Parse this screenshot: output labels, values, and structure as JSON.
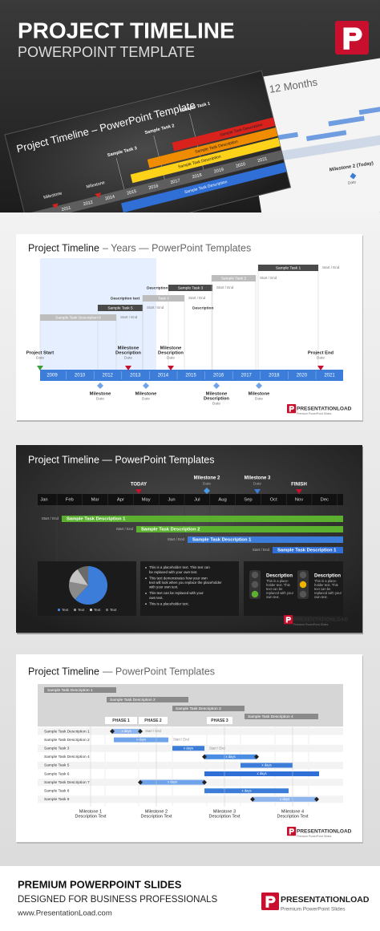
{
  "header": {
    "title": "PROJECT TIMELINE",
    "subtitle": "POWERPOINT TEMPLATE"
  },
  "preview_dark": {
    "title": "Project Timeline – PowerPoint Template",
    "tasks": [
      "Sample Task 1",
      "Sample Task 2",
      "Sample Task 3"
    ],
    "bar_label": "Sample Task Description",
    "milestone": "Milestone",
    "years": [
      "2011",
      "2012",
      "2014",
      "2015",
      "2016",
      "2017",
      "2018",
      "2019",
      "2020",
      "2021"
    ]
  },
  "preview_light": {
    "title": "e – 12 Months",
    "milestone": "Milestone 2 (Today)",
    "date": "Date"
  },
  "slide_years": {
    "title": "Project Timeline",
    "title_rest": "– Years — PowerPoint Templates",
    "years": [
      "2009",
      "2010",
      "2012",
      "2013",
      "2014",
      "2015",
      "2016",
      "2017",
      "2018",
      "2020",
      "2021"
    ],
    "tasks": [
      {
        "name": "Sample Task Description 6",
        "note": "Start / End"
      },
      {
        "name": "Sample Task 5",
        "note": "Start / End"
      },
      {
        "name": "Task 4",
        "note": "Start / End"
      },
      {
        "name": "Sample Task 3",
        "note": "Start / End"
      },
      {
        "name": "Sample Task 2",
        "note": "Start / End"
      },
      {
        "name": "Sample Task 1",
        "note": "Start / End"
      }
    ],
    "descriptions": [
      "Description text",
      "Description",
      "Description"
    ],
    "milestones_top": [
      {
        "lines": [
          "Project Start"
        ],
        "date": "Date"
      },
      {
        "lines": [
          "Milestone",
          "Description"
        ],
        "date": "Date"
      },
      {
        "lines": [
          "Milestone",
          "Description"
        ],
        "date": "Date"
      },
      {
        "lines": [
          "Project End"
        ],
        "date": "Date"
      }
    ],
    "milestones_bottom": [
      {
        "lines": [
          "Milestone"
        ],
        "date": "Date"
      },
      {
        "lines": [
          "Milestone"
        ],
        "date": "Date"
      },
      {
        "lines": [
          "Milestone",
          "Description"
        ],
        "date": "Date"
      },
      {
        "lines": [
          "Milestone"
        ],
        "date": "Date"
      }
    ]
  },
  "slide_months": {
    "title": "Project Timeline — PowerPoint Templates",
    "months": [
      "Jan",
      "Feb",
      "Mar",
      "Apr",
      "May",
      "Jun",
      "Jul",
      "Aug",
      "Sep",
      "Oct",
      "Nov",
      "Dec"
    ],
    "markers": [
      {
        "name": "TODAY"
      },
      {
        "name": "Milestone 2",
        "date": "Date"
      },
      {
        "name": "Milestone 3",
        "date": "Date"
      },
      {
        "name": "FINISH"
      }
    ],
    "tasks": [
      {
        "note": "Start / End",
        "name": "Sample Task Description 1"
      },
      {
        "note": "Start / End",
        "name": "Sample Task Description 2"
      },
      {
        "note": "Start / End",
        "name": "Sample Task Description 1"
      },
      {
        "note": "Start / End",
        "name": "Sample Task Description 1"
      }
    ],
    "pie_legend": [
      "Text",
      "Text",
      "Text",
      "Text"
    ],
    "bullets": [
      [
        "This is a placeholder text. This text can",
        "be replaced with your own text."
      ],
      [
        "This text demonstrates how your own",
        "text will look when you replace the placeholder",
        "with your own text."
      ],
      [
        "This text can be replaced with your",
        "own text."
      ],
      [
        "This is a placeholder text."
      ]
    ],
    "lights": [
      {
        "title": "Description",
        "lines": [
          "This is a place-",
          "holder text. This",
          "text can be",
          "replaced with your",
          "own text."
        ]
      },
      {
        "title": "Description",
        "lines": [
          "This is a place-",
          "holder text. This",
          "text can be",
          "replaced with your",
          "own text."
        ]
      }
    ]
  },
  "slide_gantt": {
    "title": "Project Timeline",
    "title_rest": "— PowerPoint Templates",
    "top_tasks": [
      "Sample Task Description 1",
      "Sample Task Description 2",
      "Sample Task Description 3",
      "Sample Task Description 4"
    ],
    "phases": [
      "PHASE 1",
      "PHASE 2",
      "PHASE 3"
    ],
    "rows": [
      "Sample Task Description 1",
      "Sample Task Description 2",
      "Sample Task 3",
      "Sample Task Description 4",
      "Sample Task 5",
      "Sample Task 6",
      "Sample Task Description 7",
      "Sample Task 8",
      "Sample Task 9"
    ],
    "bar_text": "x days",
    "note": "Start / End",
    "milestones": [
      {
        "name": "Milestone 1",
        "text": "Description Text"
      },
      {
        "name": "Milestone 2",
        "text": "Description Text"
      },
      {
        "name": "Milestone 3",
        "text": "Description Text"
      },
      {
        "name": "Milestone 4",
        "text": "Description Text"
      }
    ]
  },
  "footer": {
    "headline": "PREMIUM POWERPOINT SLIDES",
    "tagline": "DESIGNED FOR BUSINESS PROFESSIONALS",
    "url": "www.PresentationLoad.com",
    "brand": "PRESENTATIONLOAD",
    "brand_sub": "Premium PowerPoint Slides"
  }
}
